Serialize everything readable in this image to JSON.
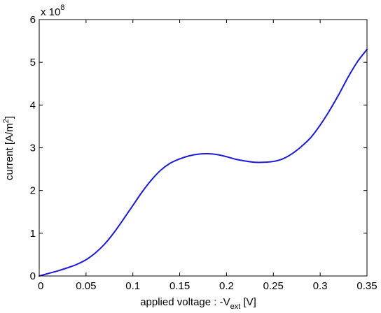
{
  "chart_data": {
    "type": "line",
    "title": "",
    "xlabel": {
      "main": "applied voltage : -V",
      "sub": "ext",
      "unit": " [V]"
    },
    "ylabel": {
      "main": "current [A/m",
      "sup": "2",
      "end": "]"
    },
    "y_multiplier": {
      "base": "x 10",
      "exponent": "8"
    },
    "xlim": [
      0,
      0.35
    ],
    "ylim": [
      0,
      6
    ],
    "xticks": [
      0,
      0.05,
      0.1,
      0.15,
      0.2,
      0.25,
      0.3,
      0.35
    ],
    "xtick_labels": [
      "0",
      "0.05",
      "0.1",
      "0.15",
      "0.2",
      "0.25",
      "0.3",
      "0.35"
    ],
    "yticks": [
      0,
      1,
      2,
      3,
      4,
      5,
      6
    ],
    "ytick_labels": [
      "0",
      "1",
      "2",
      "3",
      "4",
      "5",
      "6"
    ],
    "grid": false,
    "series_color": "#1a1ad6",
    "series": [
      {
        "x": [
          0,
          0.01,
          0.02,
          0.03,
          0.04,
          0.05,
          0.06,
          0.07,
          0.08,
          0.09,
          0.1,
          0.11,
          0.12,
          0.13,
          0.14,
          0.15,
          0.16,
          0.17,
          0.18,
          0.19,
          0.2,
          0.21,
          0.22,
          0.23,
          0.24,
          0.25,
          0.26,
          0.27,
          0.28,
          0.29,
          0.3,
          0.31,
          0.32,
          0.33,
          0.34,
          0.35
        ],
        "y": [
          0,
          0.06,
          0.12,
          0.19,
          0.27,
          0.38,
          0.54,
          0.75,
          1.02,
          1.33,
          1.65,
          1.97,
          2.25,
          2.48,
          2.64,
          2.74,
          2.81,
          2.85,
          2.86,
          2.84,
          2.79,
          2.73,
          2.69,
          2.66,
          2.66,
          2.68,
          2.74,
          2.86,
          3.03,
          3.24,
          3.53,
          3.87,
          4.25,
          4.66,
          5.02,
          5.3
        ]
      }
    ]
  }
}
